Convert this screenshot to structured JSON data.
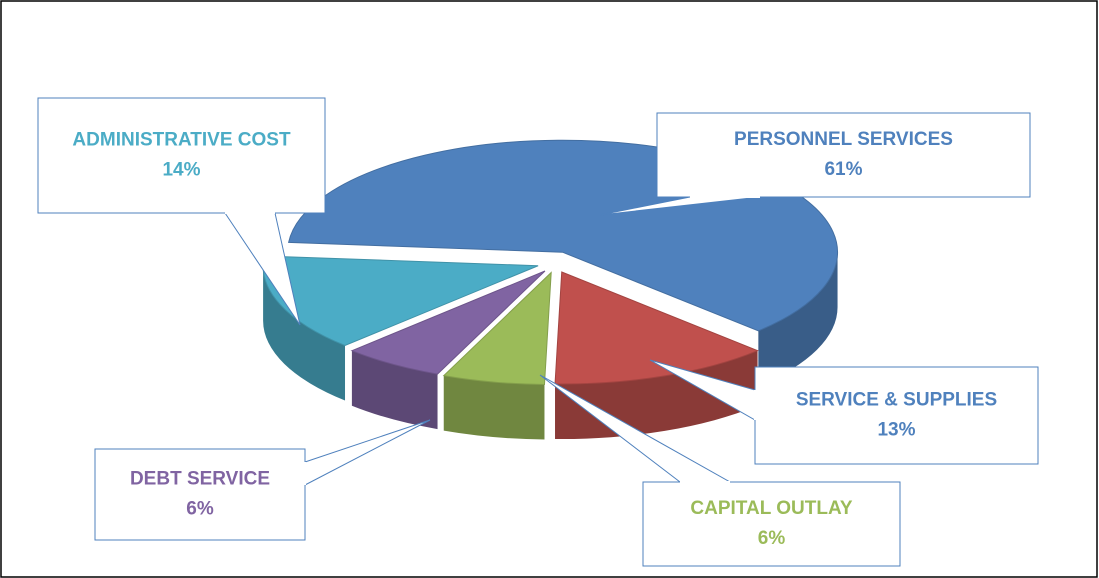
{
  "chart_data": {
    "type": "pie",
    "categories": [
      "PERSONNEL SERVICES",
      "SERVICE & SUPPLIES",
      "CAPITAL OUTLAY",
      "DEBT SERVICE",
      "ADMINISTRATIVE COST"
    ],
    "values": [
      61,
      13,
      6,
      6,
      14
    ],
    "value_labels": [
      "61%",
      "13%",
      "6%",
      "6%",
      "14%"
    ],
    "colors": [
      "#4f81bd",
      "#c0504d",
      "#9bbb59",
      "#8064a2",
      "#4bacc6"
    ]
  }
}
